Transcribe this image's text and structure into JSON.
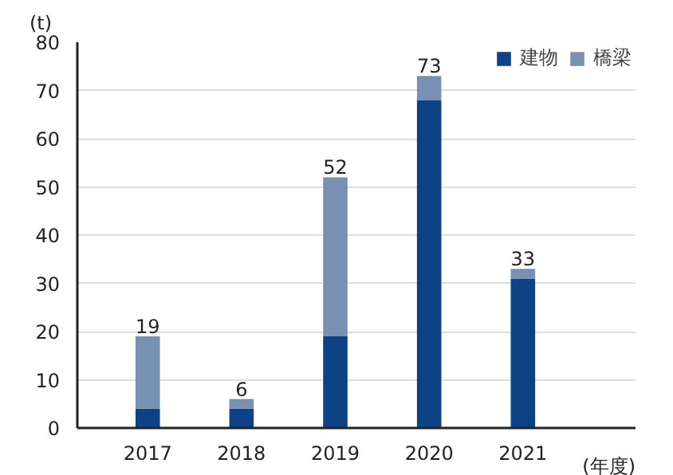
{
  "chart_data": {
    "type": "bar",
    "stacked": true,
    "categories": [
      "2017",
      "2018",
      "2019",
      "2020",
      "2021"
    ],
    "series": [
      {
        "name": "建物",
        "color": "#0d4284",
        "values": [
          4,
          4,
          19,
          68,
          31
        ]
      },
      {
        "name": "橋梁",
        "color": "#7891b3",
        "values": [
          15,
          2,
          33,
          5,
          2
        ]
      }
    ],
    "totals": [
      "19",
      "6",
      "52",
      "73",
      "33"
    ],
    "ylabel": "(t)",
    "xlabel": "(年度)",
    "ylim": [
      0,
      80
    ],
    "yticks": [
      0,
      10,
      20,
      30,
      40,
      50,
      60,
      70,
      80
    ],
    "grid": "y",
    "legend": "top right"
  }
}
